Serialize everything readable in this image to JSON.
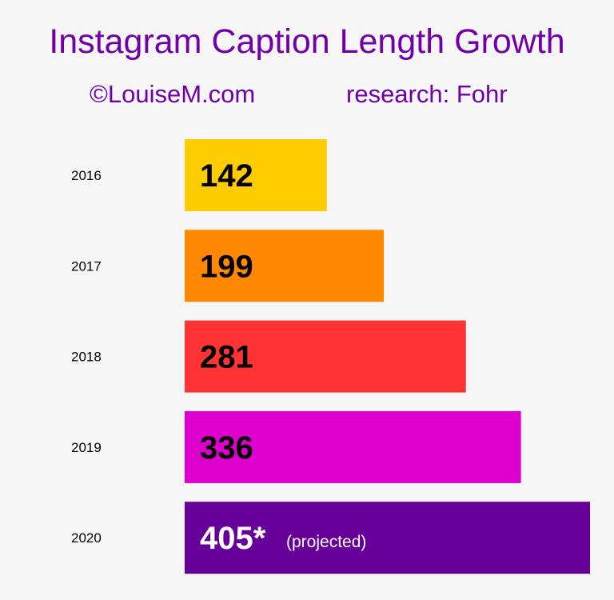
{
  "chart_data": {
    "type": "bar",
    "orientation": "horizontal",
    "title": "Instagram Caption Length Growth",
    "credit": "©LouiseM.com",
    "source": "research: Fohr",
    "categories": [
      "2016",
      "2017",
      "2018",
      "2019",
      "2020"
    ],
    "values": [
      142,
      199,
      281,
      336,
      405
    ],
    "value_labels": [
      "142",
      "199",
      "281",
      "336",
      "405*"
    ],
    "annotations": [
      "",
      "",
      "",
      "",
      "(projected)"
    ],
    "colors": [
      "#ffcc00",
      "#ff8800",
      "#ff3333",
      "#dd00cc",
      "#660099"
    ],
    "label_colors": [
      "#000000",
      "#000000",
      "#000000",
      "#000000",
      "#ffffff"
    ],
    "xlim": [
      0,
      410
    ],
    "grid": false,
    "legend": "none"
  }
}
